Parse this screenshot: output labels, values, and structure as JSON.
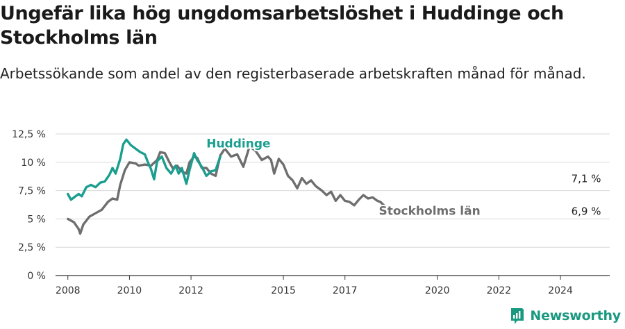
{
  "header": {
    "title": "Ungefär lika hög ungdomsarbetslöshet i Huddinge och Stockholms län",
    "subtitle": "Arbetssökande som andel av den registerbaserade arbetskraften månad för månad."
  },
  "brand": {
    "name": "Newsworthy",
    "icon": "newsworthy-logo-icon",
    "color": "#199980"
  },
  "chart_data": {
    "type": "line",
    "ylim": [
      0,
      12.5
    ],
    "xlim": [
      2007.6,
      2025.6
    ],
    "y_ticks": [
      {
        "value": 0,
        "label": "0 %"
      },
      {
        "value": 2.5,
        "label": "2,5 %"
      },
      {
        "value": 5,
        "label": "5 %"
      },
      {
        "value": 7.5,
        "label": "7,5 %"
      },
      {
        "value": 10,
        "label": "10 %"
      },
      {
        "value": 12.5,
        "label": "12,5 %"
      }
    ],
    "x_ticks": [
      {
        "value": 2008,
        "label": "2008"
      },
      {
        "value": 2010,
        "label": "2010"
      },
      {
        "value": 2012,
        "label": "2012"
      },
      {
        "value": 2015,
        "label": "2015"
      },
      {
        "value": 2017,
        "label": "2017"
      },
      {
        "value": 2020,
        "label": "2020"
      },
      {
        "value": 2022,
        "label": "2022"
      },
      {
        "value": 2024,
        "label": "2024"
      }
    ],
    "grid": true,
    "series": [
      {
        "name": "Stockholms län",
        "color": "#6e6e6e",
        "end_label": "6,9 %",
        "points": [
          [
            2008.0,
            5.0
          ],
          [
            2008.2,
            4.7
          ],
          [
            2008.35,
            4.1
          ],
          [
            2008.4,
            3.7
          ],
          [
            2008.5,
            4.5
          ],
          [
            2008.7,
            5.2
          ],
          [
            2008.9,
            5.5
          ],
          [
            2009.1,
            5.8
          ],
          [
            2009.3,
            6.5
          ],
          [
            2009.45,
            6.8
          ],
          [
            2009.6,
            6.7
          ],
          [
            2009.7,
            8.0
          ],
          [
            2009.85,
            9.3
          ],
          [
            2010.0,
            10.0
          ],
          [
            2010.2,
            9.9
          ],
          [
            2010.3,
            9.7
          ],
          [
            2010.5,
            9.8
          ],
          [
            2010.7,
            9.7
          ],
          [
            2010.9,
            10.2
          ],
          [
            2011.0,
            10.9
          ],
          [
            2011.15,
            10.8
          ],
          [
            2011.3,
            10.0
          ],
          [
            2011.4,
            9.5
          ],
          [
            2011.55,
            9.7
          ],
          [
            2011.7,
            9.2
          ],
          [
            2011.85,
            9.0
          ],
          [
            2011.95,
            10.0
          ],
          [
            2012.1,
            10.5
          ],
          [
            2012.2,
            10.4
          ],
          [
            2012.35,
            9.5
          ],
          [
            2012.5,
            9.5
          ],
          [
            2012.65,
            9.0
          ],
          [
            2012.8,
            8.8
          ],
          [
            2012.95,
            10.6
          ],
          [
            2013.1,
            11.2
          ],
          [
            2013.3,
            10.5
          ],
          [
            2013.5,
            10.7
          ],
          [
            2013.7,
            9.6
          ],
          [
            2013.9,
            11.4
          ],
          [
            2014.1,
            11.0
          ],
          [
            2014.3,
            10.2
          ],
          [
            2014.5,
            10.5
          ],
          [
            2014.6,
            10.2
          ],
          [
            2014.7,
            9.0
          ],
          [
            2014.85,
            10.3
          ],
          [
            2015.0,
            9.8
          ],
          [
            2015.15,
            8.8
          ],
          [
            2015.3,
            8.4
          ],
          [
            2015.45,
            7.7
          ],
          [
            2015.6,
            8.6
          ],
          [
            2015.75,
            8.1
          ],
          [
            2015.9,
            8.4
          ],
          [
            2016.05,
            7.9
          ],
          [
            2016.25,
            7.5
          ],
          [
            2016.4,
            7.1
          ],
          [
            2016.55,
            7.4
          ],
          [
            2016.7,
            6.6
          ],
          [
            2016.85,
            7.1
          ],
          [
            2017.0,
            6.6
          ],
          [
            2017.15,
            6.5
          ],
          [
            2017.3,
            6.2
          ],
          [
            2017.45,
            6.7
          ],
          [
            2017.6,
            7.1
          ],
          [
            2017.75,
            6.8
          ],
          [
            2017.9,
            6.9
          ],
          [
            2018.05,
            6.6
          ],
          [
            2018.15,
            6.5
          ],
          [
            2018.3,
            6.1
          ]
        ]
      },
      {
        "name": "Huddinge",
        "color": "#1a9e8f",
        "end_label": "7,1 %",
        "points": [
          [
            2008.0,
            7.2
          ],
          [
            2008.1,
            6.7
          ],
          [
            2008.25,
            7.0
          ],
          [
            2008.35,
            7.2
          ],
          [
            2008.45,
            7.0
          ],
          [
            2008.6,
            7.8
          ],
          [
            2008.75,
            8.0
          ],
          [
            2008.9,
            7.8
          ],
          [
            2009.05,
            8.2
          ],
          [
            2009.2,
            8.3
          ],
          [
            2009.35,
            8.9
          ],
          [
            2009.45,
            9.5
          ],
          [
            2009.55,
            9.0
          ],
          [
            2009.7,
            10.3
          ],
          [
            2009.8,
            11.6
          ],
          [
            2009.9,
            12.0
          ],
          [
            2010.05,
            11.5
          ],
          [
            2010.2,
            11.2
          ],
          [
            2010.35,
            10.9
          ],
          [
            2010.5,
            10.7
          ],
          [
            2010.6,
            10.0
          ],
          [
            2010.7,
            9.4
          ],
          [
            2010.8,
            8.5
          ],
          [
            2010.9,
            10.1
          ],
          [
            2011.05,
            10.5
          ],
          [
            2011.2,
            9.5
          ],
          [
            2011.35,
            9.0
          ],
          [
            2011.5,
            9.7
          ],
          [
            2011.6,
            9.0
          ],
          [
            2011.7,
            9.5
          ],
          [
            2011.85,
            8.1
          ],
          [
            2011.95,
            9.3
          ],
          [
            2012.1,
            10.8
          ],
          [
            2012.2,
            10.2
          ],
          [
            2012.35,
            9.6
          ],
          [
            2012.5,
            8.8
          ],
          [
            2012.65,
            9.2
          ],
          [
            2012.8,
            9.3
          ],
          [
            2012.95,
            10.5
          ]
        ]
      }
    ],
    "series_labels": [
      {
        "text": "Huddinge",
        "series": "Huddinge"
      },
      {
        "text": "Stockholms län",
        "series": "Stockholms län"
      }
    ]
  }
}
